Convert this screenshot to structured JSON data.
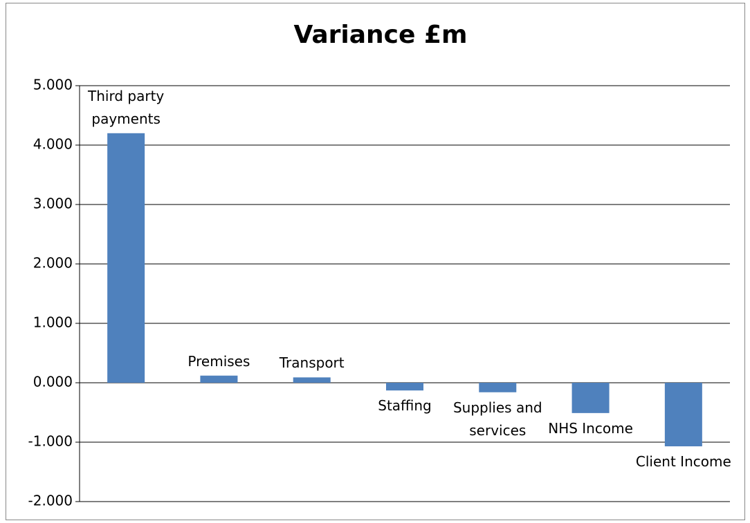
{
  "chart_data": {
    "type": "bar",
    "title": "Variance £m",
    "categories": [
      "Third party payments",
      "Premises",
      "Transport",
      "Staffing",
      "Supplies and services",
      "NHS Income",
      "Client Income"
    ],
    "values": [
      4.2,
      0.12,
      0.09,
      -0.13,
      -0.16,
      -0.51,
      -1.07
    ],
    "color": "#4f81bd",
    "ylim": [
      -2,
      5
    ],
    "yticks": [
      {
        "value": -2,
        "label": "-2.000"
      },
      {
        "value": -1,
        "label": "-1.000"
      },
      {
        "value": 0,
        "label": "0.000"
      },
      {
        "value": 1,
        "label": "1.000"
      },
      {
        "value": 2,
        "label": "2.000"
      },
      {
        "value": 3,
        "label": "3.000"
      },
      {
        "value": 4,
        "label": "4.000"
      },
      {
        "value": 5,
        "label": "5.000"
      }
    ],
    "grid": true
  }
}
